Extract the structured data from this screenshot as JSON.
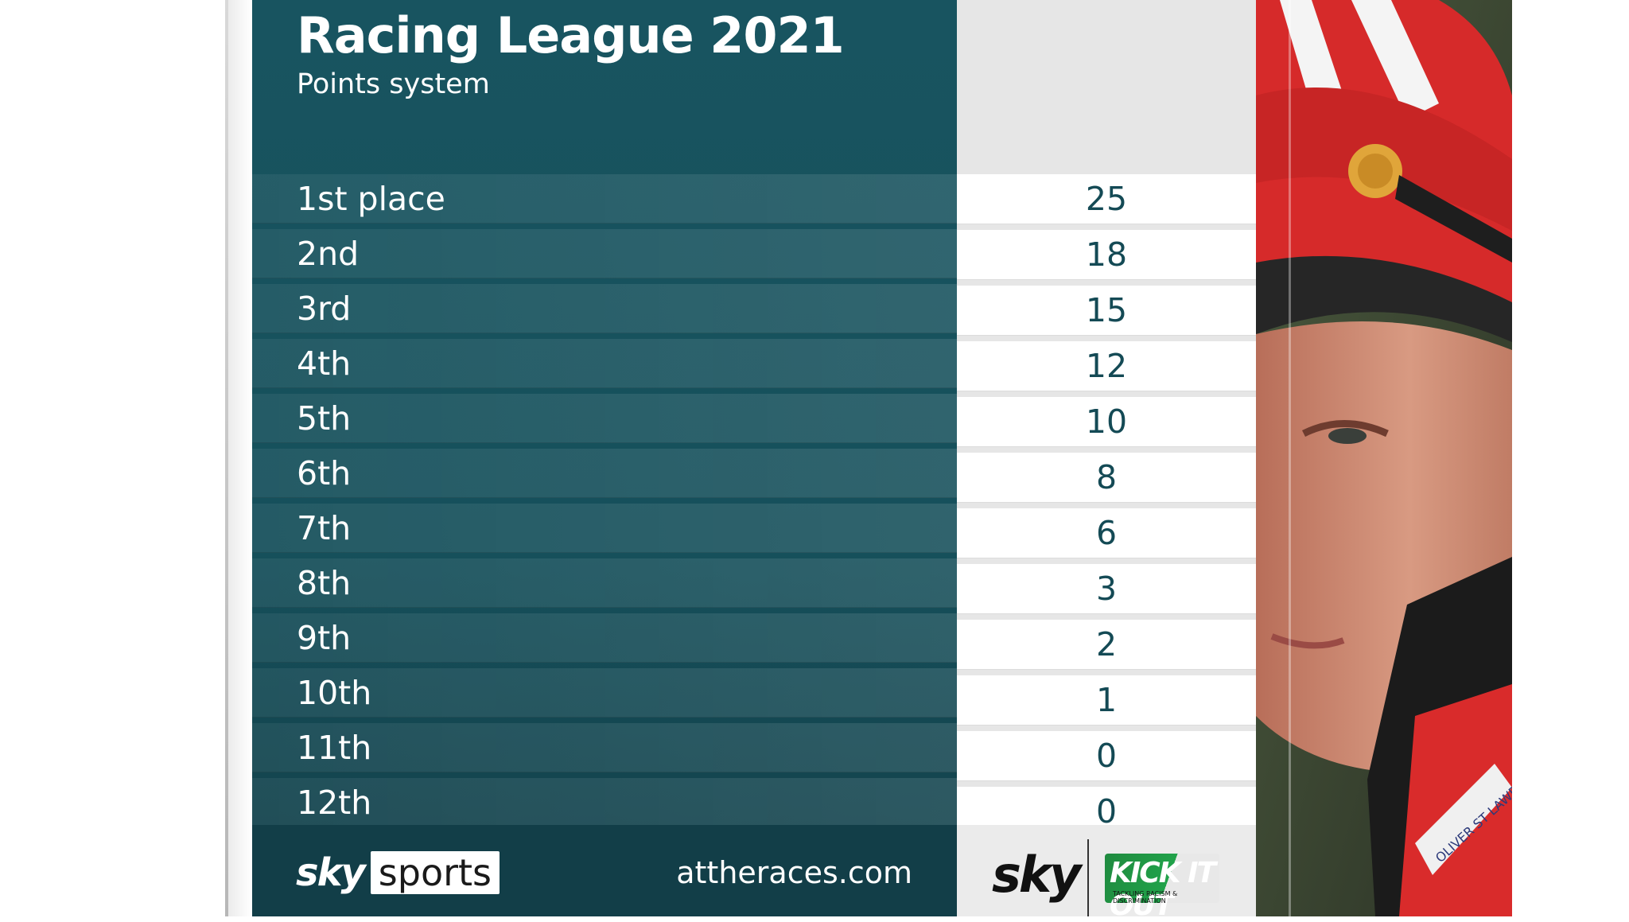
{
  "title": "Racing League 2021",
  "subtitle": "Points system",
  "rows": [
    {
      "place": "1st place",
      "points": "25"
    },
    {
      "place": "2nd",
      "points": "18"
    },
    {
      "place": "3rd",
      "points": "15"
    },
    {
      "place": "4th",
      "points": "12"
    },
    {
      "place": "5th",
      "points": "10"
    },
    {
      "place": "6th",
      "points": "8"
    },
    {
      "place": "7th",
      "points": "6"
    },
    {
      "place": "8th",
      "points": "3"
    },
    {
      "place": "9th",
      "points": "2"
    },
    {
      "place": "10th",
      "points": "1"
    },
    {
      "place": "11th",
      "points": "0"
    },
    {
      "place": "12th",
      "points": "0"
    }
  ],
  "footer": {
    "brand_sky": "sky",
    "brand_sports": "sports",
    "website": "attheraces.com",
    "sky_logo": "sky",
    "kickitout_logo": "KICK IT OUT",
    "kickitout_tagline": "TACKLING RACISM & DISCRIMINATION"
  },
  "photo": {
    "silk_lettering": "OLIVER ST LAWRENCE"
  },
  "colors": {
    "panel_teal": "#185460",
    "value_text": "#144a55",
    "kickitout_green": "#21a24a"
  }
}
